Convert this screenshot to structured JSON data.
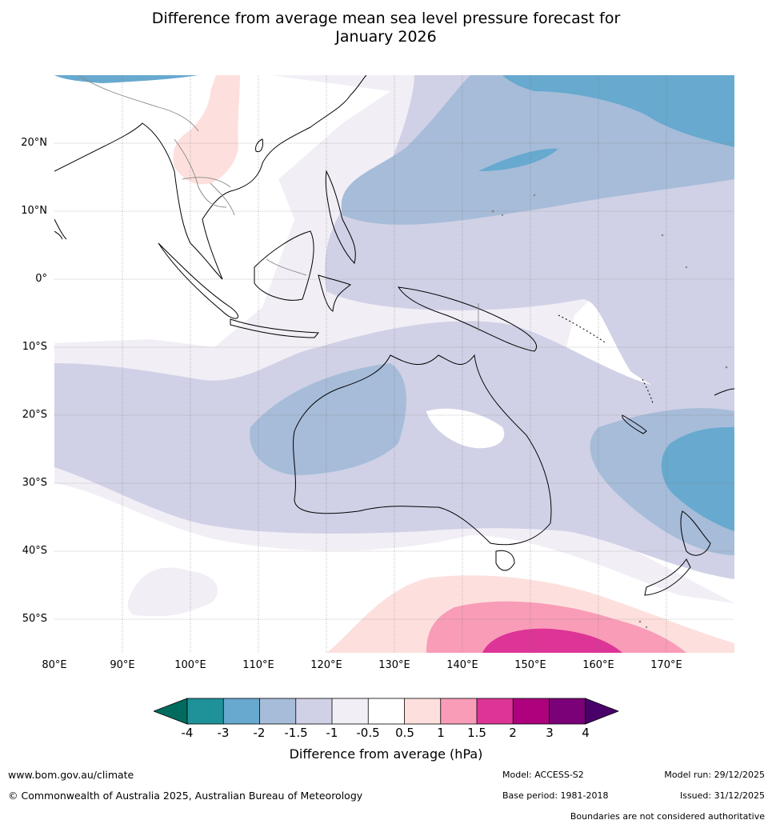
{
  "title_line1": "Difference from average mean sea level pressure forecast for",
  "title_line2": "January 2026",
  "latitude_labels": [
    "20°N",
    "10°N",
    "0°",
    "10°S",
    "20°S",
    "30°S",
    "40°S",
    "50°S"
  ],
  "longitude_labels": [
    "80°E",
    "90°E",
    "100°E",
    "110°E",
    "120°E",
    "130°E",
    "140°E",
    "150°E",
    "160°E",
    "170°E"
  ],
  "colors": {
    "lt_neg4": "#006b5e",
    "neg4_neg3": "#1e9199",
    "neg3_neg2": "#67a9cf",
    "neg2_neg1_5": "#a6bcd9",
    "neg1_5_neg1": "#d0d1e6",
    "neg1_neg0_5": "#f2eef6",
    "neg0_5_pos0_5": "#ffffff",
    "pos0_5_1": "#fde0dd",
    "pos1_1_5": "#f99cb8",
    "pos1_5_2": "#dd3497",
    "pos2_3": "#ae017e",
    "pos3_4": "#7a0177",
    "gt_4": "#49006a"
  },
  "colorbar_ticks": [
    "-4",
    "-3",
    "-2",
    "-1.5",
    "-1",
    "-0.5",
    "0.5",
    "1",
    "1.5",
    "2",
    "3",
    "4"
  ],
  "colorbar_label": "Difference from average (hPa)",
  "footer": {
    "website": "www.bom.gov.au/climate",
    "copyright": "© Commonwealth of Australia 2025, Australian Bureau of Meteorology",
    "model": "Model: ACCESS-S2",
    "base_period": "Base period: 1981-2018",
    "model_run": "Model run: 29/12/2025",
    "issued": "Issued: 31/12/2025",
    "boundaries_note": "Boundaries are not considered authoritative"
  }
}
